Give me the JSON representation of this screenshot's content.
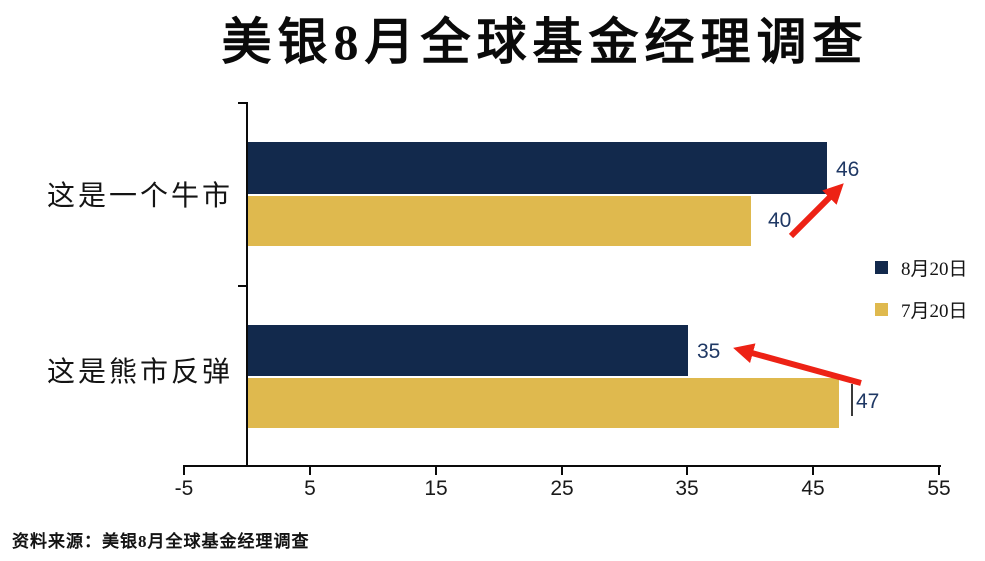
{
  "title": "美银8月全球基金经理调查",
  "source": "资料来源：美银8月全球基金经理调查",
  "chart_data": {
    "type": "bar",
    "orientation": "horizontal",
    "title": "美银8月全球基金经理调查",
    "categories": [
      "这是一个牛市",
      "这是熊市反弹"
    ],
    "series": [
      {
        "name": "8月20日",
        "color": "#12294C",
        "values": [
          46,
          35
        ]
      },
      {
        "name": "7月20日",
        "color": "#DFB94E",
        "values": [
          40,
          47
        ]
      }
    ],
    "xlim": [
      -5,
      55
    ],
    "x_ticks": [
      -5,
      5,
      15,
      25,
      35,
      45,
      55
    ],
    "grid": false,
    "legend_position": "right",
    "value_label_color": "#1F3864",
    "annotations": [
      {
        "type": "arrow",
        "color": "#ED2215",
        "from_value": 40,
        "to_value": 46,
        "meaning": "bull-market reading rose from 40 to 46"
      },
      {
        "type": "arrow",
        "color": "#ED2215",
        "from_value": 47,
        "to_value": 35,
        "meaning": "bear-rally reading fell from 47 to 35"
      }
    ]
  }
}
